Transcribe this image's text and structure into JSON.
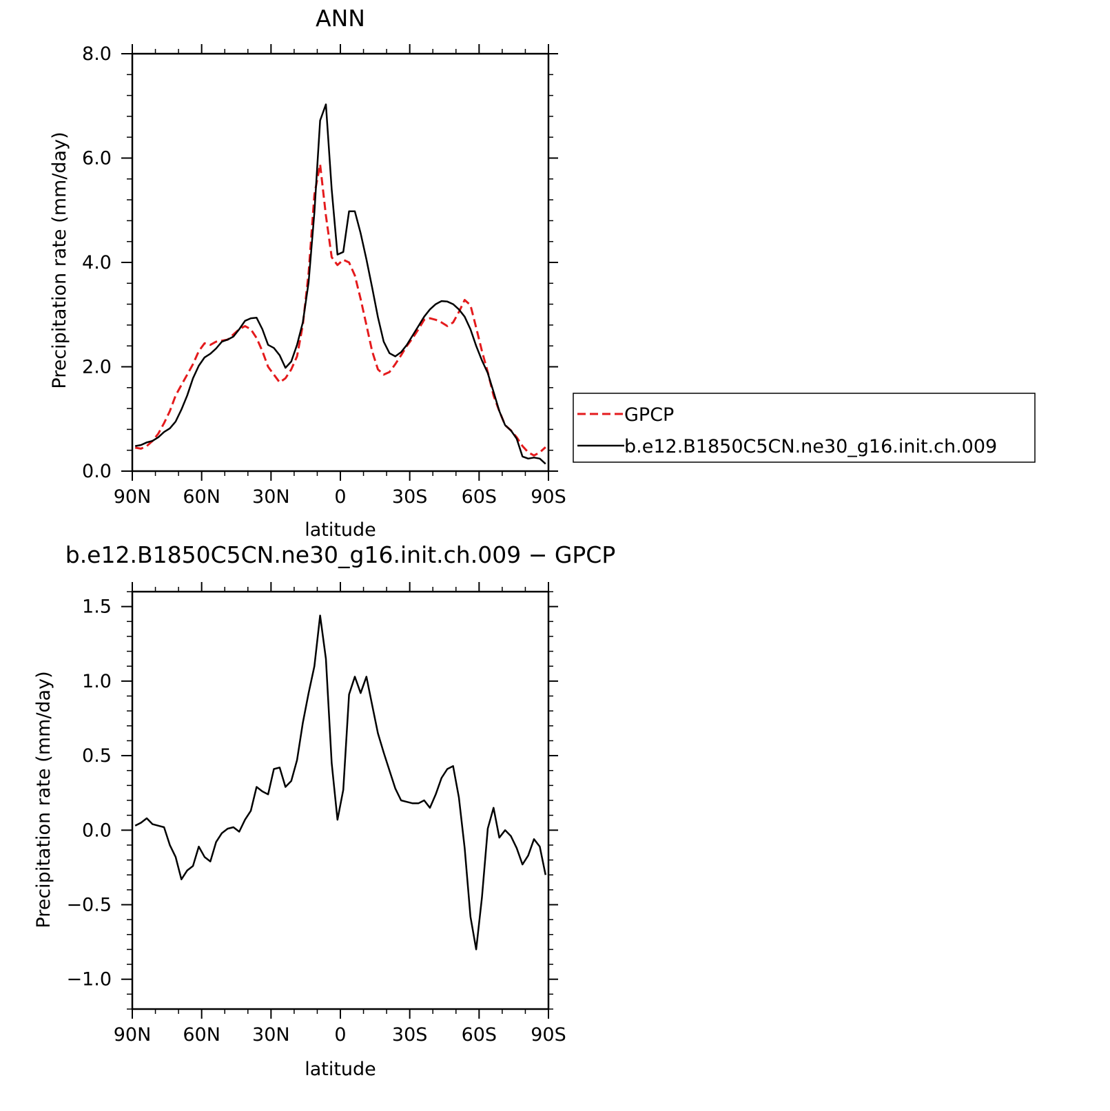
{
  "chart_data": [
    {
      "type": "line",
      "title": "ANN",
      "xlabel": "latitude",
      "ylabel": "Precipitation rate (mm/day)",
      "xlim": [
        90,
        -90
      ],
      "ylim": [
        0,
        8
      ],
      "xticks": [
        {
          "value": 90,
          "label": "90N"
        },
        {
          "value": 60,
          "label": "60N"
        },
        {
          "value": 30,
          "label": "30N"
        },
        {
          "value": 0,
          "label": "0"
        },
        {
          "value": -30,
          "label": "30S"
        },
        {
          "value": -60,
          "label": "60S"
        },
        {
          "value": -90,
          "label": "90S"
        }
      ],
      "yticks": [
        {
          "value": 0,
          "label": "0.0"
        },
        {
          "value": 2,
          "label": "2.0"
        },
        {
          "value": 4,
          "label": "4.0"
        },
        {
          "value": 6,
          "label": "6.0"
        },
        {
          "value": 8,
          "label": "8.0"
        }
      ],
      "legend_position": "right",
      "series": [
        {
          "name": "GPCP",
          "color": "#e41a1c",
          "dash": "dashed",
          "x": [
            88.75,
            86.25,
            83.75,
            81.25,
            78.75,
            76.25,
            73.75,
            71.25,
            68.75,
            66.25,
            63.75,
            61.25,
            58.75,
            56.25,
            53.75,
            51.25,
            48.75,
            46.25,
            43.75,
            41.25,
            38.75,
            36.25,
            33.75,
            31.25,
            28.75,
            26.25,
            23.75,
            21.25,
            18.75,
            16.25,
            13.75,
            11.25,
            8.75,
            6.25,
            3.75,
            1.25,
            -1.25,
            -3.75,
            -6.25,
            -8.75,
            -11.25,
            -13.75,
            -16.25,
            -18.75,
            -21.25,
            -23.75,
            -26.25,
            -28.75,
            -31.25,
            -33.75,
            -36.25,
            -38.75,
            -41.25,
            -43.75,
            -46.25,
            -48.75,
            -51.25,
            -53.75,
            -56.25,
            -58.75,
            -61.25,
            -63.75,
            -66.25,
            -68.75,
            -71.25,
            -73.75,
            -76.25,
            -78.75,
            -81.25,
            -83.75,
            -86.25,
            -88.75
          ],
          "y": [
            0.45,
            0.43,
            0.48,
            0.58,
            0.72,
            0.92,
            1.15,
            1.45,
            1.65,
            1.85,
            2.05,
            2.3,
            2.45,
            2.42,
            2.48,
            2.5,
            2.52,
            2.62,
            2.72,
            2.78,
            2.72,
            2.55,
            2.3,
            2.0,
            1.85,
            1.7,
            1.78,
            1.95,
            2.2,
            2.8,
            3.8,
            5.3,
            5.88,
            4.9,
            4.1,
            3.95,
            4.05,
            4.0,
            3.75,
            3.3,
            2.8,
            2.3,
            1.95,
            1.85,
            1.9,
            2.05,
            2.22,
            2.4,
            2.55,
            2.72,
            2.9,
            2.93,
            2.9,
            2.85,
            2.78,
            2.85,
            3.05,
            3.28,
            3.18,
            2.75,
            2.3,
            1.9,
            1.45,
            1.15,
            0.88,
            0.78,
            0.65,
            0.48,
            0.36,
            0.3,
            0.36,
            0.46
          ]
        },
        {
          "name": "b.e12.B1850C5CN.ne30_g16.init.ch.009",
          "color": "#000000",
          "dash": "solid",
          "x": [
            88.75,
            86.25,
            83.75,
            81.25,
            78.75,
            76.25,
            73.75,
            71.25,
            68.75,
            66.25,
            63.75,
            61.25,
            58.75,
            56.25,
            53.75,
            51.25,
            48.75,
            46.25,
            43.75,
            41.25,
            38.75,
            36.25,
            33.75,
            31.25,
            28.75,
            26.25,
            23.75,
            21.25,
            18.75,
            16.25,
            13.75,
            11.25,
            8.75,
            6.25,
            3.75,
            1.25,
            -1.25,
            -3.75,
            -6.25,
            -8.75,
            -11.25,
            -13.75,
            -16.25,
            -18.75,
            -21.25,
            -23.75,
            -26.25,
            -28.75,
            -31.25,
            -33.75,
            -36.25,
            -38.75,
            -41.25,
            -43.75,
            -46.25,
            -48.75,
            -51.25,
            -53.75,
            -56.25,
            -58.75,
            -61.25,
            -63.75,
            -66.25,
            -68.75,
            -71.25,
            -73.75,
            -76.25,
            -78.75,
            -81.25,
            -83.75,
            -86.25,
            -88.75
          ],
          "y": [
            0.48,
            0.5,
            0.55,
            0.58,
            0.65,
            0.75,
            0.82,
            0.95,
            1.18,
            1.45,
            1.78,
            2.02,
            2.18,
            2.25,
            2.35,
            2.48,
            2.52,
            2.58,
            2.72,
            2.88,
            2.93,
            2.94,
            2.72,
            2.42,
            2.36,
            2.22,
            1.98,
            2.1,
            2.42,
            2.85,
            3.62,
            4.96,
            6.72,
            7.03,
            5.4,
            4.15,
            4.2,
            4.98,
            4.98,
            4.56,
            4.06,
            3.52,
            2.95,
            2.48,
            2.26,
            2.2,
            2.28,
            2.42,
            2.6,
            2.78,
            2.96,
            3.1,
            3.2,
            3.26,
            3.25,
            3.2,
            3.1,
            2.96,
            2.72,
            2.4,
            2.12,
            1.88,
            1.52,
            1.15,
            0.88,
            0.78,
            0.62,
            0.28,
            0.24,
            0.26,
            0.24,
            0.14
          ]
        }
      ]
    },
    {
      "type": "line",
      "title": "b.e12.B1850C5CN.ne30_g16.init.ch.009 − GPCP",
      "xlabel": "latitude",
      "ylabel": "Precipitation rate (mm/day)",
      "xlim": [
        90,
        -90
      ],
      "ylim": [
        -1.2,
        1.6
      ],
      "xticks": [
        {
          "value": 90,
          "label": "90N"
        },
        {
          "value": 60,
          "label": "60N"
        },
        {
          "value": 30,
          "label": "30N"
        },
        {
          "value": 0,
          "label": "0"
        },
        {
          "value": -30,
          "label": "30S"
        },
        {
          "value": -60,
          "label": "60S"
        },
        {
          "value": -90,
          "label": "90S"
        }
      ],
      "yticks": [
        {
          "value": -1.0,
          "label": "−1.0"
        },
        {
          "value": -0.5,
          "label": "−0.5"
        },
        {
          "value": 0.0,
          "label": "0.0"
        },
        {
          "value": 0.5,
          "label": "0.5"
        },
        {
          "value": 1.0,
          "label": "1.0"
        },
        {
          "value": 1.5,
          "label": "1.5"
        }
      ],
      "series": [
        {
          "name": "",
          "color": "#000000",
          "dash": "solid",
          "x": [
            88.75,
            86.25,
            83.75,
            81.25,
            78.75,
            76.25,
            73.75,
            71.25,
            68.75,
            66.25,
            63.75,
            61.25,
            58.75,
            56.25,
            53.75,
            51.25,
            48.75,
            46.25,
            43.75,
            41.25,
            38.75,
            36.25,
            33.75,
            31.25,
            28.75,
            26.25,
            23.75,
            21.25,
            18.75,
            16.25,
            13.75,
            11.25,
            8.75,
            6.25,
            3.75,
            1.25,
            -1.25,
            -3.75,
            -6.25,
            -8.75,
            -11.25,
            -13.75,
            -16.25,
            -18.75,
            -21.25,
            -23.75,
            -26.25,
            -28.75,
            -31.25,
            -33.75,
            -36.25,
            -38.75,
            -41.25,
            -43.75,
            -46.25,
            -48.75,
            -51.25,
            -53.75,
            -56.25,
            -58.75,
            -61.25,
            -63.75,
            -66.25,
            -68.75,
            -71.25,
            -73.75,
            -76.25,
            -78.75,
            -81.25,
            -83.75,
            -86.25,
            -88.75
          ],
          "y": [
            0.03,
            0.05,
            0.08,
            0.04,
            0.03,
            0.02,
            -0.1,
            -0.18,
            -0.33,
            -0.27,
            -0.24,
            -0.11,
            -0.18,
            -0.21,
            -0.08,
            -0.02,
            0.01,
            0.02,
            -0.01,
            0.07,
            0.13,
            0.29,
            0.26,
            0.24,
            0.41,
            0.42,
            0.29,
            0.33,
            0.47,
            0.72,
            0.92,
            1.1,
            1.44,
            1.15,
            0.45,
            0.07,
            0.27,
            0.91,
            1.03,
            0.92,
            1.03,
            0.84,
            0.65,
            0.52,
            0.4,
            0.28,
            0.2,
            0.19,
            0.18,
            0.18,
            0.2,
            0.15,
            0.24,
            0.35,
            0.41,
            0.43,
            0.22,
            -0.12,
            -0.58,
            -0.8,
            -0.45,
            0.01,
            0.15,
            -0.05,
            0.0,
            -0.04,
            -0.12,
            -0.23,
            -0.17,
            -0.06,
            -0.11,
            -0.3
          ]
        }
      ]
    }
  ]
}
